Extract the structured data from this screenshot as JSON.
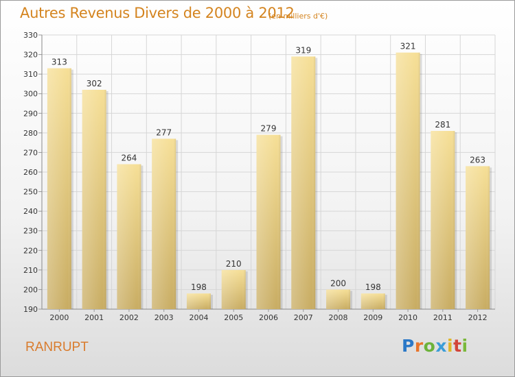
{
  "header": {
    "title": "Autres Revenus Divers de 2000 à 2012",
    "subtitle": "(en milliers d'€)"
  },
  "footer": {
    "commune": "RANRUPT",
    "logo_letters": [
      "P",
      "r",
      "o",
      "x",
      "i",
      "t",
      "i"
    ]
  },
  "colors": {
    "title": "#d4841f",
    "bar_light": "#f6df96",
    "bar_dark": "#c8ac62",
    "grid": "#d6d6d6"
  },
  "chart_data": {
    "type": "bar",
    "title": "Autres Revenus Divers de 2000 à 2012",
    "subtitle": "(en milliers d'€)",
    "categories": [
      "2000",
      "2001",
      "2002",
      "2003",
      "2004",
      "2005",
      "2006",
      "2007",
      "2008",
      "2009",
      "2010",
      "2011",
      "2012"
    ],
    "values": [
      313,
      302,
      264,
      277,
      198,
      210,
      279,
      319,
      200,
      198,
      321,
      281,
      263
    ],
    "ylim": [
      190,
      330
    ],
    "yticks": [
      190,
      200,
      210,
      220,
      230,
      240,
      250,
      260,
      270,
      280,
      290,
      300,
      310,
      320,
      330
    ],
    "grid": true,
    "legend": "none"
  }
}
